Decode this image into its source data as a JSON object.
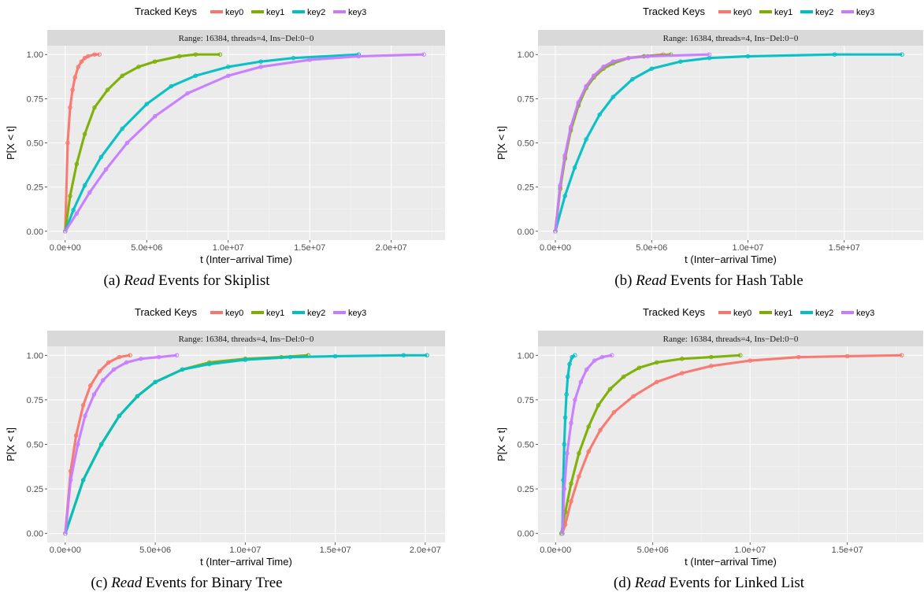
{
  "colors": {
    "key0": "#F8766D",
    "key1": "#7CAE00",
    "key2": "#00BFC4",
    "key3": "#C77CFF",
    "panel_bg": "#EBEBEB",
    "strip_bg": "#D9D9D9",
    "grid": "#FFFFFF",
    "tick_text": "#4D4D4D"
  },
  "chart_data": [
    {
      "type": "line",
      "title": "Range: 16384, threads=4, Ins−Del:0−0",
      "xlabel": "t (Inter−arrival Time)",
      "ylabel": "P[X < t]",
      "legend_title": "Tracked Keys",
      "legend_position": "top",
      "caption": {
        "prefix": "(a) ",
        "emph": "Read",
        "rest": " Events for Skiplist"
      },
      "xlim": [
        -1100000,
        23300000
      ],
      "ylim": [
        -0.05,
        1.05
      ],
      "xticks": [
        0,
        5000000,
        10000000,
        15000000,
        20000000
      ],
      "xtick_labels": [
        "0.0e+00",
        "5.0e+06",
        "1.0e+07",
        "1.5e+07",
        "2.0e+07"
      ],
      "yticks": [
        0,
        0.25,
        0.5,
        0.75,
        1
      ],
      "ytick_labels": [
        "0.00",
        "0.25",
        "0.50",
        "0.75",
        "1.00"
      ],
      "series": [
        {
          "name": "key0",
          "x": [
            0,
            150000,
            300000,
            450000,
            600000,
            800000,
            1000000,
            1200000,
            1400000,
            1800000,
            2100000
          ],
          "y": [
            0,
            0.5,
            0.7,
            0.8,
            0.87,
            0.93,
            0.96,
            0.98,
            0.99,
            1.0,
            1.0
          ]
        },
        {
          "name": "key1",
          "x": [
            0,
            300000,
            700000,
            1200000,
            1800000,
            2600000,
            3500000,
            4500000,
            5500000,
            7000000,
            8000000,
            9500000
          ],
          "y": [
            0,
            0.2,
            0.38,
            0.55,
            0.7,
            0.8,
            0.88,
            0.93,
            0.96,
            0.99,
            1.0,
            1.0
          ]
        },
        {
          "name": "key2",
          "x": [
            0,
            500000,
            1200000,
            2200000,
            3500000,
            5000000,
            6500000,
            8000000,
            10000000,
            12000000,
            14000000,
            18000000
          ],
          "y": [
            0,
            0.12,
            0.26,
            0.42,
            0.58,
            0.72,
            0.82,
            0.88,
            0.93,
            0.96,
            0.98,
            1.0
          ]
        },
        {
          "name": "key3",
          "x": [
            0,
            700000,
            1500000,
            2500000,
            3800000,
            5500000,
            7500000,
            10000000,
            12000000,
            15000000,
            18000000,
            22000000
          ],
          "y": [
            0,
            0.1,
            0.22,
            0.35,
            0.5,
            0.65,
            0.78,
            0.88,
            0.93,
            0.97,
            0.99,
            1.0
          ]
        }
      ]
    },
    {
      "type": "line",
      "title": "Range: 16384, threads=4, Ins−Del:0−0",
      "xlabel": "t (Inter−arrival Time)",
      "ylabel": "P[X < t]",
      "legend_title": "Tracked Keys",
      "legend_position": "top",
      "caption": {
        "prefix": "(b) ",
        "emph": "Read",
        "rest": " Events for Hash Table"
      },
      "xlim": [
        -900000,
        19100000
      ],
      "ylim": [
        -0.05,
        1.05
      ],
      "xticks": [
        0,
        5000000,
        10000000,
        15000000
      ],
      "xtick_labels": [
        "0.0e+00",
        "5.0e+06",
        "1.0e+07",
        "1.5e+07"
      ],
      "yticks": [
        0,
        0.25,
        0.5,
        0.75,
        1
      ],
      "ytick_labels": [
        "0.00",
        "0.25",
        "0.50",
        "0.75",
        "1.00"
      ],
      "series": [
        {
          "name": "key0",
          "x": [
            0,
            250000,
            500000,
            800000,
            1200000,
            1600000,
            2000000,
            2500000,
            3000000,
            3800000,
            4600000,
            5600000
          ],
          "y": [
            0,
            0.25,
            0.42,
            0.58,
            0.72,
            0.82,
            0.88,
            0.93,
            0.96,
            0.98,
            0.99,
            1.0
          ]
        },
        {
          "name": "key1",
          "x": [
            0,
            250000,
            500000,
            800000,
            1200000,
            1600000,
            2000000,
            2500000,
            3000000,
            3800000,
            4600000,
            6000000
          ],
          "y": [
            0,
            0.24,
            0.41,
            0.57,
            0.71,
            0.81,
            0.87,
            0.92,
            0.95,
            0.98,
            0.99,
            1.0
          ]
        },
        {
          "name": "key2",
          "x": [
            0,
            500000,
            1000000,
            1600000,
            2300000,
            3000000,
            4000000,
            5000000,
            6500000,
            8000000,
            10000000,
            14500000,
            18000000
          ],
          "y": [
            0,
            0.2,
            0.36,
            0.52,
            0.66,
            0.76,
            0.86,
            0.92,
            0.96,
            0.98,
            0.99,
            1.0,
            1.0
          ]
        },
        {
          "name": "key3",
          "x": [
            0,
            250000,
            500000,
            800000,
            1200000,
            1600000,
            2000000,
            2500000,
            3000000,
            3800000,
            4800000,
            8000000
          ],
          "y": [
            0,
            0.26,
            0.43,
            0.59,
            0.73,
            0.82,
            0.88,
            0.93,
            0.96,
            0.98,
            0.99,
            1.0
          ]
        }
      ]
    },
    {
      "type": "line",
      "title": "Range: 16384, threads=4, Ins−Del:0−0",
      "xlabel": "t (Inter−arrival Time)",
      "ylabel": "P[X < t]",
      "legend_title": "Tracked Keys",
      "legend_position": "top",
      "caption": {
        "prefix": "(c) ",
        "emph": "Read",
        "rest": " Events for Binary Tree"
      },
      "xlim": [
        -1000000,
        21100000
      ],
      "ylim": [
        -0.05,
        1.05
      ],
      "xticks": [
        0,
        5000000,
        10000000,
        15000000,
        20000000
      ],
      "xtick_labels": [
        "0.0e+00",
        "5.0e+06",
        "1.0e+07",
        "1.5e+07",
        "2.0e+07"
      ],
      "yticks": [
        0,
        0.25,
        0.5,
        0.75,
        1
      ],
      "ytick_labels": [
        "0.00",
        "0.25",
        "0.50",
        "0.75",
        "1.00"
      ],
      "series": [
        {
          "name": "key0",
          "x": [
            0,
            300000,
            600000,
            1000000,
            1400000,
            1900000,
            2400000,
            3000000,
            3600000
          ],
          "y": [
            0,
            0.35,
            0.55,
            0.72,
            0.83,
            0.91,
            0.96,
            0.99,
            1.0
          ]
        },
        {
          "name": "key1",
          "x": [
            0,
            1000000,
            2000000,
            3000000,
            4000000,
            5000000,
            6500000,
            8000000,
            10000000,
            12000000,
            13500000
          ],
          "y": [
            0,
            0.3,
            0.5,
            0.66,
            0.77,
            0.85,
            0.92,
            0.96,
            0.98,
            0.99,
            1.0
          ]
        },
        {
          "name": "key2",
          "x": [
            0,
            1000000,
            2000000,
            3000000,
            4000000,
            5000000,
            6500000,
            8000000,
            10000000,
            12500000,
            15000000,
            18800000,
            20100000
          ],
          "y": [
            0,
            0.3,
            0.5,
            0.66,
            0.77,
            0.85,
            0.92,
            0.95,
            0.975,
            0.99,
            0.995,
            1.0,
            1.0
          ]
        },
        {
          "name": "key3",
          "x": [
            0,
            300000,
            700000,
            1100000,
            1600000,
            2100000,
            2700000,
            3400000,
            4200000,
            5200000,
            6200000
          ],
          "y": [
            0,
            0.3,
            0.5,
            0.66,
            0.78,
            0.86,
            0.92,
            0.96,
            0.98,
            0.99,
            1.0
          ]
        }
      ]
    },
    {
      "type": "line",
      "title": "Range: 16384, threads=4, Ins−Del:0−0",
      "xlabel": "t (Inter−arrival Time)",
      "ylabel": "P[X < t]",
      "legend_title": "Tracked Keys",
      "legend_position": "top",
      "caption": {
        "prefix": "(d) ",
        "emph": "Read",
        "rest": " Events for Linked List"
      },
      "xlim": [
        -900000,
        18900000
      ],
      "ylim": [
        -0.05,
        1.05
      ],
      "xticks": [
        0,
        5000000,
        10000000,
        15000000
      ],
      "xtick_labels": [
        "0.0e+00",
        "5.0e+06",
        "1.0e+07",
        "1.5e+07"
      ],
      "yticks": [
        0,
        0.25,
        0.5,
        0.75,
        1
      ],
      "ytick_labels": [
        "0.00",
        "0.25",
        "0.50",
        "0.75",
        "1.00"
      ],
      "series": [
        {
          "name": "key0",
          "x": [
            350000,
            500000,
            800000,
            1200000,
            1700000,
            2300000,
            3000000,
            4000000,
            5200000,
            6500000,
            8000000,
            10000000,
            12500000,
            15000000,
            17800000
          ],
          "y": [
            0,
            0.05,
            0.18,
            0.32,
            0.46,
            0.58,
            0.68,
            0.77,
            0.85,
            0.9,
            0.94,
            0.97,
            0.99,
            0.995,
            1.0
          ]
        },
        {
          "name": "key1",
          "x": [
            300000,
            500000,
            800000,
            1200000,
            1700000,
            2200000,
            2800000,
            3500000,
            4300000,
            5200000,
            6500000,
            8000000,
            9500000
          ],
          "y": [
            0,
            0.12,
            0.28,
            0.45,
            0.6,
            0.72,
            0.81,
            0.88,
            0.93,
            0.96,
            0.98,
            0.99,
            1.0
          ]
        },
        {
          "name": "key2",
          "x": [
            350000,
            400000,
            450000,
            500000,
            560000,
            630000,
            720000,
            850000,
            1000000
          ],
          "y": [
            0,
            0.3,
            0.5,
            0.65,
            0.78,
            0.88,
            0.95,
            0.99,
            1.0
          ]
        },
        {
          "name": "key3",
          "x": [
            350000,
            450000,
            600000,
            800000,
            1000000,
            1300000,
            1600000,
            2000000,
            2400000,
            2900000
          ],
          "y": [
            0,
            0.25,
            0.45,
            0.62,
            0.75,
            0.85,
            0.92,
            0.97,
            0.99,
            1.0
          ]
        }
      ]
    }
  ]
}
